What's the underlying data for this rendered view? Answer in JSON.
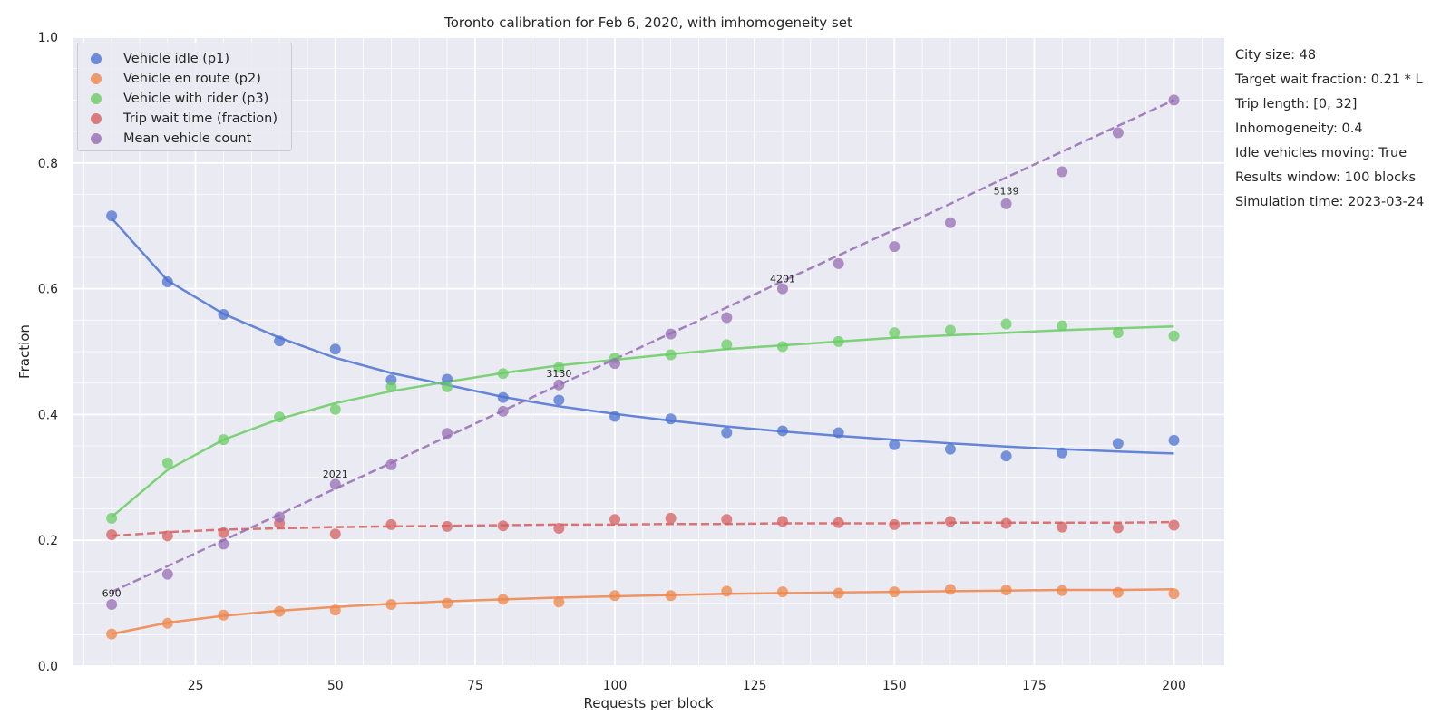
{
  "chart_data": {
    "type": "scatter",
    "title": "Toronto calibration for Feb 6, 2020, with imhomogeneity set",
    "xlabel": "Requests per block",
    "ylabel": "Fraction",
    "xlim": [
      3,
      209
    ],
    "ylim": [
      0.0,
      1.0
    ],
    "xticks": [
      25,
      50,
      75,
      100,
      125,
      150,
      175,
      200
    ],
    "yticks": [
      0.0,
      0.2,
      0.4,
      0.6,
      0.8,
      1.0
    ],
    "grid": true,
    "legend_position": "top-left",
    "x": [
      10,
      20,
      30,
      40,
      50,
      60,
      70,
      80,
      90,
      100,
      110,
      120,
      130,
      140,
      150,
      160,
      170,
      180,
      190,
      200
    ],
    "series": [
      {
        "name": "Vehicle idle (p1)",
        "color": "#4c72d0",
        "fit_style": "solid",
        "values": [
          0.716,
          0.611,
          0.559,
          0.517,
          0.504,
          0.455,
          0.456,
          0.427,
          0.423,
          0.397,
          0.393,
          0.371,
          0.374,
          0.371,
          0.352,
          0.345,
          0.334,
          0.339,
          0.354,
          0.359
        ],
        "fit": [
          0.712,
          0.613,
          0.56,
          0.522,
          0.49,
          0.466,
          0.447,
          0.428,
          0.413,
          0.401,
          0.39,
          0.381,
          0.373,
          0.366,
          0.36,
          0.354,
          0.349,
          0.345,
          0.341,
          0.338
        ]
      },
      {
        "name": "Vehicle en route (p2)",
        "color": "#ee854a",
        "fit_style": "solid",
        "values": [
          0.051,
          0.068,
          0.081,
          0.087,
          0.089,
          0.098,
          0.1,
          0.106,
          0.102,
          0.112,
          0.112,
          0.119,
          0.118,
          0.116,
          0.118,
          0.122,
          0.121,
          0.12,
          0.117,
          0.115
        ],
        "fit": [
          0.051,
          0.069,
          0.08,
          0.088,
          0.094,
          0.099,
          0.103,
          0.106,
          0.109,
          0.111,
          0.113,
          0.115,
          0.116,
          0.117,
          0.118,
          0.119,
          0.12,
          0.121,
          0.121,
          0.122
        ]
      },
      {
        "name": "Vehicle with rider (p3)",
        "color": "#6acc64",
        "fit_style": "solid",
        "values": [
          0.235,
          0.323,
          0.36,
          0.396,
          0.408,
          0.444,
          0.444,
          0.465,
          0.475,
          0.49,
          0.495,
          0.511,
          0.508,
          0.516,
          0.53,
          0.534,
          0.544,
          0.541,
          0.53,
          0.525
        ],
        "fit": [
          0.237,
          0.312,
          0.36,
          0.393,
          0.418,
          0.437,
          0.452,
          0.466,
          0.478,
          0.487,
          0.496,
          0.504,
          0.51,
          0.516,
          0.522,
          0.526,
          0.53,
          0.534,
          0.537,
          0.54
        ]
      },
      {
        "name": "Trip wait time (fraction)",
        "color": "#d65f5f",
        "fit_style": "dashed",
        "values": [
          0.209,
          0.207,
          0.212,
          0.227,
          0.21,
          0.225,
          0.222,
          0.223,
          0.219,
          0.233,
          0.235,
          0.233,
          0.23,
          0.228,
          0.225,
          0.23,
          0.227,
          0.221,
          0.22,
          0.224
        ],
        "fit": [
          0.207,
          0.213,
          0.217,
          0.219,
          0.221,
          0.222,
          0.223,
          0.224,
          0.225,
          0.225,
          0.226,
          0.226,
          0.227,
          0.227,
          0.227,
          0.228,
          0.228,
          0.228,
          0.228,
          0.229
        ]
      },
      {
        "name": "Mean vehicle count",
        "color": "#956cb4",
        "fit_style": "dashed",
        "values": [
          0.098,
          0.146,
          0.194,
          0.237,
          0.289,
          0.32,
          0.37,
          0.405,
          0.447,
          0.481,
          0.528,
          0.554,
          0.6,
          0.64,
          0.667,
          0.705,
          0.735,
          0.786,
          0.848,
          0.9
        ],
        "fit": [
          0.118,
          0.159,
          0.2,
          0.241,
          0.282,
          0.323,
          0.365,
          0.406,
          0.447,
          0.488,
          0.529,
          0.57,
          0.612,
          0.653,
          0.694,
          0.735,
          0.777,
          0.818,
          0.859,
          0.9
        ]
      }
    ],
    "annotations": [
      {
        "text": "690",
        "x": 10,
        "y": 0.11
      },
      {
        "text": "2021",
        "x": 50,
        "y": 0.3
      },
      {
        "text": "3130",
        "x": 90,
        "y": 0.46
      },
      {
        "text": "4201",
        "x": 130,
        "y": 0.61
      },
      {
        "text": "5139",
        "x": 170,
        "y": 0.75
      }
    ]
  },
  "info_panel": [
    "City size: 48",
    "Target wait fraction: 0.21 * L",
    "Trip length: [0, 32]",
    "Inhomogeneity: 0.4",
    "Idle vehicles moving: True",
    "Results window: 100 blocks",
    "Simulation time: 2023-03-24"
  ]
}
